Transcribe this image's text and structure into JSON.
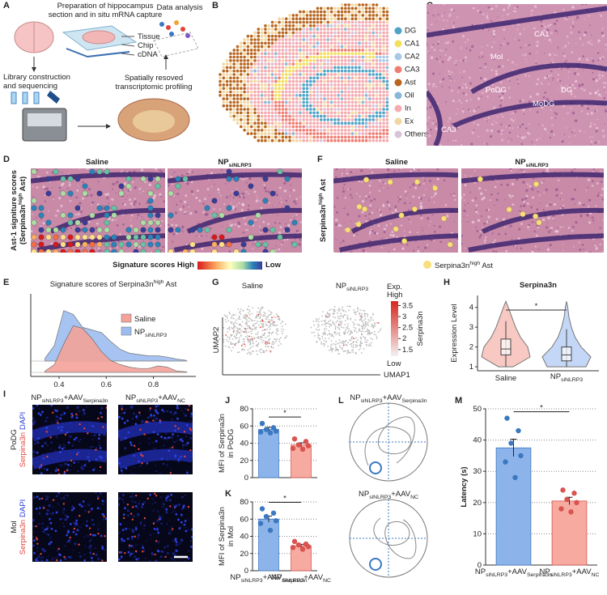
{
  "panel_labels": [
    "A",
    "B",
    "C",
    "D",
    "E",
    "F",
    "G",
    "H",
    "I",
    "J",
    "K",
    "L",
    "M"
  ],
  "a": {
    "title": [
      "Preparation of hippocampus",
      "section and in situ mRNA capture"
    ],
    "tissue": "Tissue",
    "chip": "Chip",
    "cdna": "cDNA",
    "analysis": "Data analysis",
    "library": [
      "Library construction",
      "and sequencing"
    ],
    "profiling": [
      "Spatially resoved",
      "transcriptomic profiling"
    ]
  },
  "b": {
    "legend": [
      {
        "name": "DG",
        "color": "#4fa3c7"
      },
      {
        "name": "CA1",
        "color": "#f2df5e"
      },
      {
        "name": "CA2",
        "color": "#a9c8e8"
      },
      {
        "name": "CA3",
        "color": "#ef7d73"
      },
      {
        "name": "Ast",
        "color": "#b8651f"
      },
      {
        "name": "Oil",
        "color": "#86b7d9"
      },
      {
        "name": "In",
        "color": "#f5abb0"
      },
      {
        "name": "Ex",
        "color": "#f1d7a2"
      },
      {
        "name": "Others",
        "color": "#d8c3d8"
      }
    ]
  },
  "c": {
    "labels": [
      "CA1",
      "Mol",
      "PoDG",
      "DG",
      "MoDG",
      "CA3"
    ]
  },
  "saline": "Saline",
  "np": {
    "main": "NP",
    "sub": "siNLRP3"
  },
  "d": {
    "ylabel": "Ast-1 signiture scores",
    "ylabel2": {
      "pre": "(Serpina3n",
      "sup": "high",
      "post": " Ast)"
    },
    "colorbar_high": "Signature scores High",
    "colorbar_low": "Low"
  },
  "f": {
    "ylabel": {
      "pre": "Serpina3n",
      "sup": "high",
      "post": " Ast"
    },
    "legend": {
      "pre": "Serpina3n",
      "sup": "high",
      "post": " Ast"
    }
  },
  "g": {
    "x_label": "UMAP1",
    "y_label": "UMAP2",
    "colorbar_title": "Exp.",
    "colorbar_high": "High",
    "colorbar_low": "Low",
    "colorbar_gene": "Serpina3n",
    "colorbar_lim": [
      1.2,
      3.7
    ],
    "colorbar_ticks": [
      3.5,
      3,
      2.5,
      2,
      1.5
    ]
  },
  "groups": [
    {
      "l": "NP",
      "s": "siNLRP3",
      "l2": "+AAV",
      "s2": "Serpina3n"
    },
    {
      "l": "NP",
      "s": "siNLRP3",
      "l2": "+AAV",
      "s2": "NC"
    }
  ],
  "i": {
    "regions": [
      "PoDG",
      "Mol"
    ],
    "stains": [
      "Serpina3n",
      "DAPI"
    ]
  },
  "chart_data": [
    {
      "type": "density",
      "title": {
        "pre": "Signature scores of Serpina3n",
        "sup": "high",
        "post": " Ast"
      },
      "x": [
        0.34,
        0.38,
        0.42,
        0.46,
        0.5,
        0.54,
        0.58,
        0.62,
        0.66,
        0.7,
        0.74,
        0.78,
        0.82,
        0.86,
        0.9,
        0.94
      ],
      "series": [
        {
          "name": "Saline",
          "color": "#f4a39a",
          "values": [
            0.1,
            0.6,
            2.2,
            3.6,
            3.4,
            2.6,
            1.6,
            0.9,
            0.6,
            0.4,
            0.3,
            0.3,
            0.5,
            0.4,
            0.1,
            0.05
          ]
        },
        {
          "name": {
            "main": "NP",
            "sub": "siNLRP3"
          },
          "color": "#9dbdf0",
          "values": [
            0.2,
            1.2,
            3.9,
            3.6,
            2.6,
            2.4,
            2.2,
            1.5,
            0.9,
            0.6,
            0.5,
            0.4,
            0.4,
            0.3,
            0.15,
            0.05
          ]
        }
      ],
      "xlim": [
        0.28,
        0.98
      ],
      "xticks": [
        0.4,
        0.6,
        0.8
      ],
      "ylim": [
        0,
        5
      ]
    },
    {
      "type": "violin",
      "title": "Serpina3n",
      "y_label": [
        "Expression Level"
      ],
      "categories": [
        "Saline",
        {
          "main": "NP",
          "sub": "siNLRP3"
        }
      ],
      "levels": [
        1,
        1.5,
        2,
        2.5,
        3,
        3.5,
        4,
        4.3
      ],
      "series": [
        {
          "color": "#f4a39a",
          "widths": [
            0.3,
            1,
            0.9,
            0.6,
            0.4,
            0.25,
            0.1,
            0
          ],
          "quartiles": [
            1.6,
            1.9,
            2.4
          ],
          "whiskers": [
            1.0,
            3.3
          ]
        },
        {
          "color": "#9dbdf0",
          "widths": [
            0.8,
            1,
            0.6,
            0.35,
            0.2,
            0.1,
            0.05,
            0
          ],
          "quartiles": [
            1.3,
            1.6,
            2.0
          ],
          "whiskers": [
            1.0,
            2.9
          ]
        }
      ],
      "ylim": [
        0.8,
        4.6
      ],
      "yticks": [
        1,
        2,
        3,
        4
      ],
      "significance": "*"
    },
    {
      "type": "bar",
      "y_label": [
        "MFI of Serpina3n",
        "in PoDG"
      ],
      "values": [
        56,
        38
      ],
      "errors": [
        2.5,
        2.5
      ],
      "points": [
        [
          63,
          58,
          56,
          54,
          53,
          52
        ],
        [
          45,
          42,
          38,
          37,
          34,
          33
        ]
      ],
      "colors": [
        "#8db4ea",
        "#f6aaa0"
      ],
      "point_colors": [
        "#3a78c2",
        "#d9534f"
      ],
      "ylim": [
        0,
        80
      ],
      "yticks": [
        0,
        20,
        40,
        60,
        80
      ],
      "grid": true,
      "significance": "*"
    },
    {
      "type": "bar",
      "y_label": [
        "MFI of Serpina3n",
        "in Mol"
      ],
      "values": [
        60,
        29
      ],
      "errors": [
        3.5,
        1.7
      ],
      "points": [
        [
          72,
          67,
          63,
          58,
          55,
          47
        ],
        [
          34,
          31,
          30,
          28,
          27,
          25
        ]
      ],
      "colors": [
        "#8db4ea",
        "#f6aaa0"
      ],
      "point_colors": [
        "#3a78c2",
        "#d9534f"
      ],
      "ylim": [
        0,
        80
      ],
      "yticks": [
        0,
        20,
        40,
        60,
        80
      ],
      "grid": true,
      "significance": "*",
      "categories": [
        {
          "l": "NP",
          "s": "siNLRP3",
          "l2": "+AAV",
          "s2": "Serpina3n"
        },
        {
          "l": "NP",
          "s": "siNLRP3",
          "l2": "+AAV",
          "s2": "NC"
        }
      ]
    },
    {
      "type": "bar",
      "y_label": [
        "Latency (s)"
      ],
      "values": [
        37.5,
        20.5
      ],
      "errors": [
        2.8,
        1.2
      ],
      "points": [
        [
          47,
          43,
          39,
          35,
          33,
          28
        ],
        [
          24,
          23,
          21,
          20,
          18,
          17
        ]
      ],
      "colors": [
        "#8db4ea",
        "#f6aaa0"
      ],
      "point_colors": [
        "#3a78c2",
        "#d9534f"
      ],
      "ylim": [
        0,
        50
      ],
      "yticks": [
        0,
        10,
        20,
        30,
        40,
        50
      ],
      "grid": true,
      "significance": "*",
      "categories": [
        {
          "l": "NP",
          "s": "siNLRP3",
          "l2": "+AAV",
          "s2": "Serpina3n"
        },
        {
          "l": "NP",
          "s": "siNLRP3",
          "l2": "+AAV",
          "s2": "NC"
        }
      ]
    }
  ]
}
